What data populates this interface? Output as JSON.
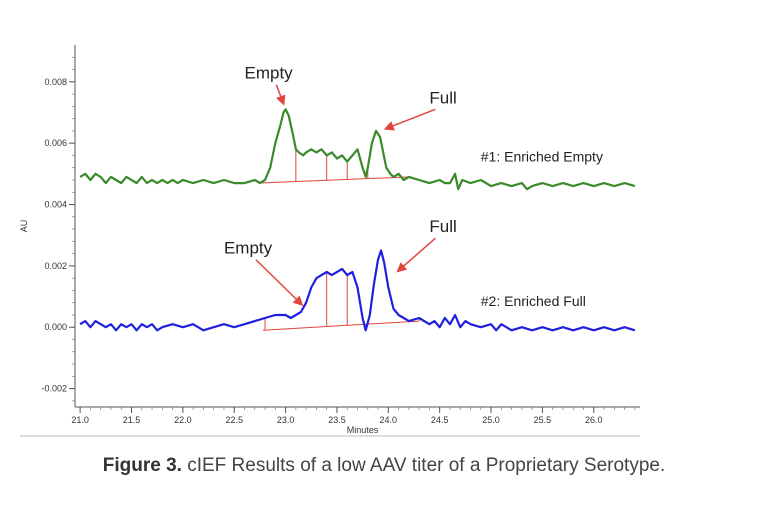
{
  "caption": {
    "label": "Figure 3.",
    "text": "cIEF Results of a low AAV titer of a Proprietary Serotype."
  },
  "chart_data": {
    "type": "line",
    "title": "",
    "xlabel": "Minutes",
    "ylabel": "AU",
    "xlim": [
      20.95,
      26.45
    ],
    "ylim": [
      -0.0026,
      0.0092
    ],
    "x_ticks": [
      "21.0",
      "21.5",
      "22.0",
      "22.5",
      "23.0",
      "23.5",
      "24.0",
      "24.5",
      "25.0",
      "25.5",
      "26.0"
    ],
    "y_ticks": [
      "0.008",
      "0.006",
      "0.004",
      "0.002",
      "0.000",
      "-0.002"
    ],
    "colors": {
      "series1": "#3a8a2a",
      "series2": "#1f1fe0",
      "markers": "#e0453c",
      "arrow": "#e2453f"
    },
    "series": [
      {
        "name": "#1: Enriched Empty",
        "points": [
          [
            21.0,
            0.0049
          ],
          [
            21.05,
            0.005
          ],
          [
            21.1,
            0.0048
          ],
          [
            21.15,
            0.005
          ],
          [
            21.2,
            0.0049
          ],
          [
            21.25,
            0.0047
          ],
          [
            21.3,
            0.0049
          ],
          [
            21.35,
            0.0048
          ],
          [
            21.4,
            0.0047
          ],
          [
            21.45,
            0.0049
          ],
          [
            21.5,
            0.0048
          ],
          [
            21.55,
            0.0047
          ],
          [
            21.6,
            0.0049
          ],
          [
            21.65,
            0.0047
          ],
          [
            21.7,
            0.0048
          ],
          [
            21.75,
            0.0047
          ],
          [
            21.8,
            0.0048
          ],
          [
            21.85,
            0.0047
          ],
          [
            21.9,
            0.0048
          ],
          [
            21.95,
            0.0047
          ],
          [
            22.0,
            0.0048
          ],
          [
            22.1,
            0.0047
          ],
          [
            22.2,
            0.0048
          ],
          [
            22.3,
            0.0047
          ],
          [
            22.4,
            0.0048
          ],
          [
            22.5,
            0.0047
          ],
          [
            22.6,
            0.0047
          ],
          [
            22.7,
            0.0048
          ],
          [
            22.75,
            0.0047
          ],
          [
            22.8,
            0.0048
          ],
          [
            22.85,
            0.0052
          ],
          [
            22.9,
            0.006
          ],
          [
            22.95,
            0.0066
          ],
          [
            22.98,
            0.007
          ],
          [
            23.0,
            0.0071
          ],
          [
            23.03,
            0.0069
          ],
          [
            23.07,
            0.0063
          ],
          [
            23.1,
            0.0058
          ],
          [
            23.13,
            0.0057
          ],
          [
            23.17,
            0.0056
          ],
          [
            23.2,
            0.0057
          ],
          [
            23.25,
            0.0058
          ],
          [
            23.3,
            0.0057
          ],
          [
            23.35,
            0.0058
          ],
          [
            23.4,
            0.0056
          ],
          [
            23.45,
            0.0057
          ],
          [
            23.5,
            0.0055
          ],
          [
            23.55,
            0.0056
          ],
          [
            23.6,
            0.0054
          ],
          [
            23.65,
            0.0056
          ],
          [
            23.7,
            0.0058
          ],
          [
            23.75,
            0.0052
          ],
          [
            23.78,
            0.0049
          ],
          [
            23.8,
            0.0052
          ],
          [
            23.84,
            0.006
          ],
          [
            23.88,
            0.0064
          ],
          [
            23.92,
            0.0062
          ],
          [
            23.95,
            0.0057
          ],
          [
            23.98,
            0.0052
          ],
          [
            24.02,
            0.005
          ],
          [
            24.05,
            0.0049
          ],
          [
            24.1,
            0.005
          ],
          [
            24.15,
            0.0048
          ],
          [
            24.2,
            0.0049
          ],
          [
            24.3,
            0.0048
          ],
          [
            24.4,
            0.0047
          ],
          [
            24.5,
            0.0048
          ],
          [
            24.55,
            0.0047
          ],
          [
            24.6,
            0.0047
          ],
          [
            24.65,
            0.005
          ],
          [
            24.68,
            0.0045
          ],
          [
            24.72,
            0.0048
          ],
          [
            24.8,
            0.0047
          ],
          [
            24.9,
            0.0048
          ],
          [
            25.0,
            0.0046
          ],
          [
            25.1,
            0.0047
          ],
          [
            25.2,
            0.0046
          ],
          [
            25.3,
            0.0047
          ],
          [
            25.35,
            0.0045
          ],
          [
            25.4,
            0.0046
          ],
          [
            25.5,
            0.0047
          ],
          [
            25.6,
            0.0046
          ],
          [
            25.7,
            0.0047
          ],
          [
            25.8,
            0.0046
          ],
          [
            25.9,
            0.0047
          ],
          [
            26.0,
            0.0046
          ],
          [
            26.1,
            0.0047
          ],
          [
            26.2,
            0.0046
          ],
          [
            26.3,
            0.0047
          ],
          [
            26.4,
            0.0046
          ]
        ]
      },
      {
        "name": "#2: Enriched Full",
        "points": [
          [
            21.0,
            0.0001
          ],
          [
            21.05,
            0.0002
          ],
          [
            21.1,
            0.0
          ],
          [
            21.15,
            0.0002
          ],
          [
            21.2,
            0.0001
          ],
          [
            21.25,
            0.0
          ],
          [
            21.3,
            0.0001
          ],
          [
            21.35,
            -0.0001
          ],
          [
            21.4,
            0.0001
          ],
          [
            21.45,
            0.0
          ],
          [
            21.5,
            0.0001
          ],
          [
            21.55,
            -0.0001
          ],
          [
            21.6,
            0.0001
          ],
          [
            21.65,
            0.0
          ],
          [
            21.7,
            0.0001
          ],
          [
            21.75,
            -0.0001
          ],
          [
            21.8,
            0.0
          ],
          [
            21.9,
            0.0001
          ],
          [
            22.0,
            0.0
          ],
          [
            22.1,
            0.0001
          ],
          [
            22.2,
            -0.0001
          ],
          [
            22.3,
            0.0
          ],
          [
            22.4,
            0.0001
          ],
          [
            22.5,
            0.0
          ],
          [
            22.6,
            0.0001
          ],
          [
            22.7,
            0.0002
          ],
          [
            22.8,
            0.0003
          ],
          [
            22.9,
            0.0004
          ],
          [
            23.0,
            0.0004
          ],
          [
            23.05,
            0.0003
          ],
          [
            23.1,
            0.0004
          ],
          [
            23.15,
            0.0005
          ],
          [
            23.2,
            0.0008
          ],
          [
            23.25,
            0.0013
          ],
          [
            23.3,
            0.0016
          ],
          [
            23.35,
            0.0017
          ],
          [
            23.4,
            0.0018
          ],
          [
            23.45,
            0.0017
          ],
          [
            23.5,
            0.0018
          ],
          [
            23.55,
            0.0019
          ],
          [
            23.6,
            0.0017
          ],
          [
            23.65,
            0.0018
          ],
          [
            23.7,
            0.0013
          ],
          [
            23.75,
            0.0003
          ],
          [
            23.78,
            -0.0001
          ],
          [
            23.82,
            0.0004
          ],
          [
            23.86,
            0.0014
          ],
          [
            23.9,
            0.0022
          ],
          [
            23.93,
            0.0025
          ],
          [
            23.96,
            0.0021
          ],
          [
            24.0,
            0.0013
          ],
          [
            24.05,
            0.0006
          ],
          [
            24.1,
            0.0004
          ],
          [
            24.15,
            0.0003
          ],
          [
            24.2,
            0.0002
          ],
          [
            24.3,
            0.0003
          ],
          [
            24.4,
            0.0001
          ],
          [
            24.45,
            0.0002
          ],
          [
            24.5,
            0.0
          ],
          [
            24.55,
            0.0003
          ],
          [
            24.6,
            0.0001
          ],
          [
            24.65,
            0.0004
          ],
          [
            24.7,
            0.0
          ],
          [
            24.75,
            0.0002
          ],
          [
            24.8,
            0.0001
          ],
          [
            24.9,
            0.0
          ],
          [
            25.0,
            0.0001
          ],
          [
            25.05,
            -0.0001
          ],
          [
            25.1,
            0.0001
          ],
          [
            25.2,
            -0.0001
          ],
          [
            25.3,
            0.0
          ],
          [
            25.4,
            -0.0001
          ],
          [
            25.5,
            0.0
          ],
          [
            25.6,
            -0.0001
          ],
          [
            25.7,
            0.0
          ],
          [
            25.8,
            -0.0001
          ],
          [
            25.9,
            0.0
          ],
          [
            26.0,
            -0.0001
          ],
          [
            26.1,
            0.0
          ],
          [
            26.2,
            -0.0001
          ],
          [
            26.3,
            0.0
          ],
          [
            26.4,
            -0.0001
          ]
        ]
      }
    ],
    "baselines": [
      {
        "series": 0,
        "from": [
          22.75,
          0.0047
        ],
        "to": [
          24.2,
          0.0049
        ]
      },
      {
        "series": 1,
        "from": [
          22.78,
          -0.0001
        ],
        "to": [
          24.3,
          0.0002
        ]
      }
    ],
    "peak_markers": [
      {
        "series": 0,
        "x": [
          22.78,
          23.1,
          23.4,
          23.6,
          23.8,
          24.2
        ]
      },
      {
        "series": 1,
        "x": [
          22.8,
          23.4,
          23.6,
          23.8,
          24.3
        ]
      }
    ],
    "annotations": [
      {
        "text": "Empty",
        "at": [
          23.0,
          0.0071
        ],
        "label_pos": [
          22.6,
          0.0081
        ]
      },
      {
        "text": "Full",
        "at": [
          23.92,
          0.0064
        ],
        "label_pos": [
          24.4,
          0.0073
        ]
      },
      {
        "text": "Empty",
        "at": [
          23.2,
          0.0006
        ],
        "label_pos": [
          22.4,
          0.0024
        ]
      },
      {
        "text": "Full",
        "at": [
          24.05,
          0.0017
        ],
        "label_pos": [
          24.4,
          0.0031
        ]
      }
    ],
    "series_labels": [
      {
        "text": "#1: Enriched Empty",
        "pos": [
          24.9,
          0.0054
        ]
      },
      {
        "text": "#2: Enriched Full",
        "pos": [
          24.9,
          0.0007
        ]
      }
    ]
  }
}
